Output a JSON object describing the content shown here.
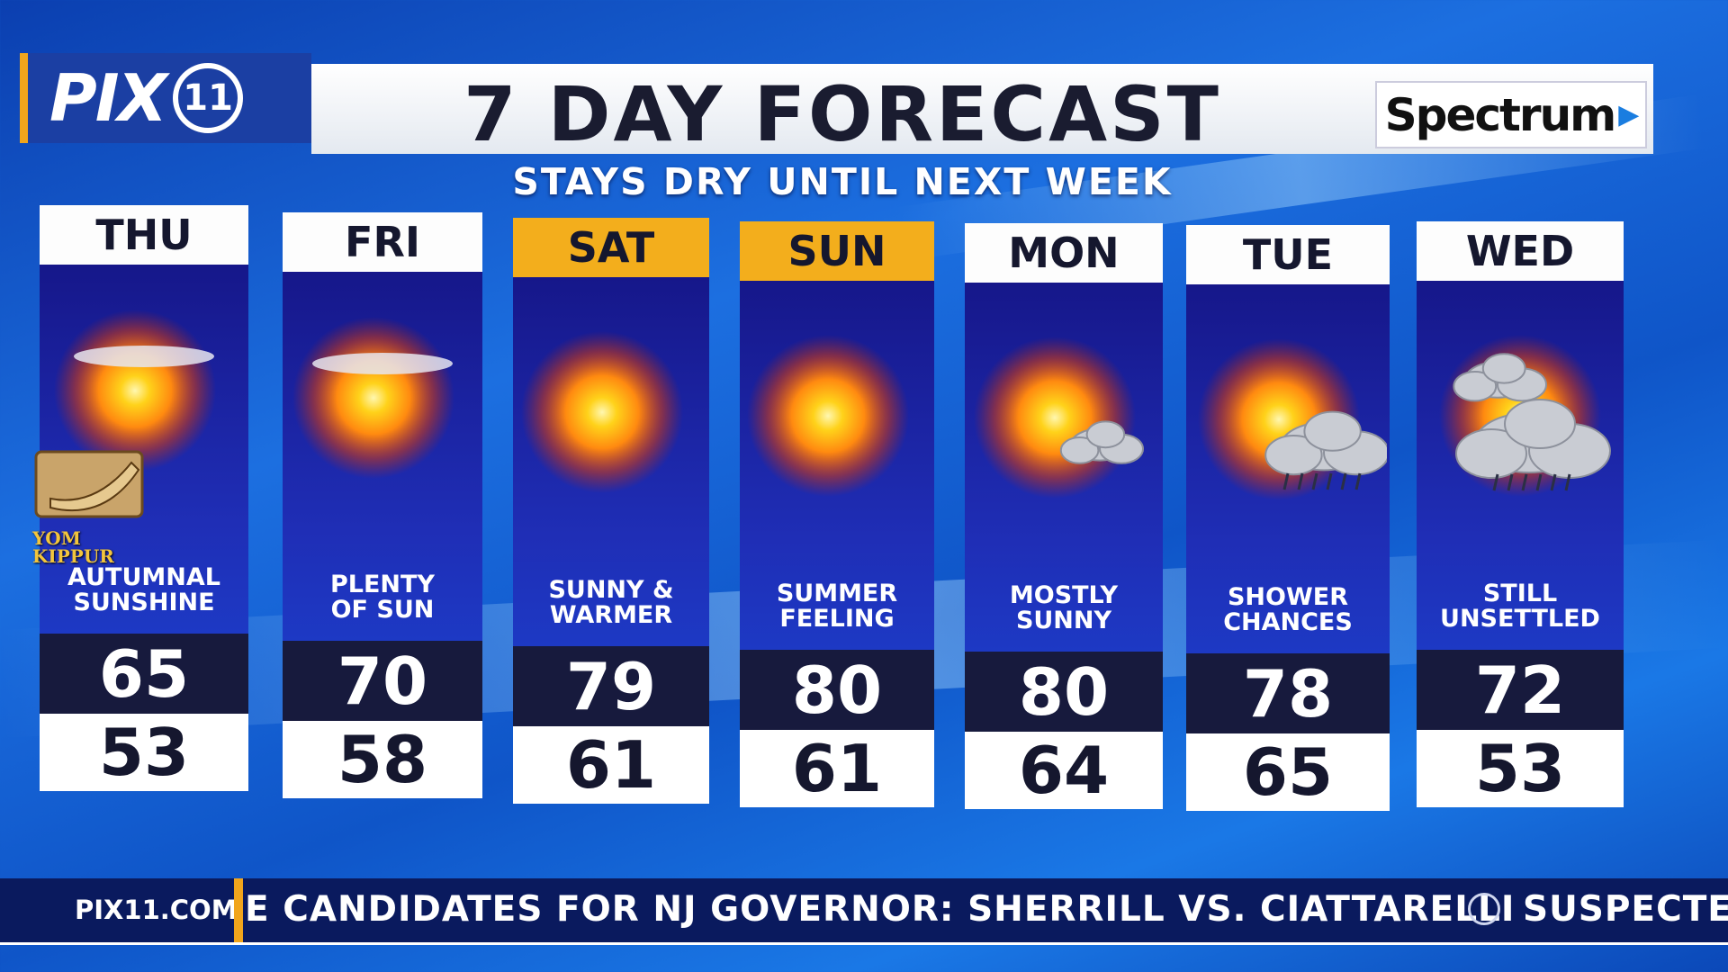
{
  "header": {
    "logo": "PIX",
    "logo_badge": "11",
    "title": "7 DAY FORECAST",
    "subtitle": "STAYS DRY UNTIL NEXT WEEK",
    "sponsor": "Spectrum"
  },
  "badge": {
    "label": "YOM KIPPUR"
  },
  "days": [
    {
      "day": "THU",
      "conditions": [
        "AUTUMNAL",
        "SUNSHINE"
      ],
      "high": 65,
      "low": 53,
      "highlighted": false
    },
    {
      "day": "FRI",
      "conditions": [
        "PLENTY",
        "OF SUN"
      ],
      "high": 70,
      "low": 58,
      "highlighted": false
    },
    {
      "day": "SAT",
      "conditions": [
        "SUNNY &",
        "WARMER"
      ],
      "high": 79,
      "low": 61,
      "highlighted": true
    },
    {
      "day": "SUN",
      "conditions": [
        "SUMMER",
        "FEELING"
      ],
      "high": 80,
      "low": 61,
      "highlighted": true
    },
    {
      "day": "MON",
      "conditions": [
        "MOSTLY",
        "SUNNY"
      ],
      "high": 80,
      "low": 64,
      "highlighted": false
    },
    {
      "day": "TUE",
      "conditions": [
        "SHOWER",
        "CHANCES"
      ],
      "high": 78,
      "low": 65,
      "highlighted": false
    },
    {
      "day": "WED",
      "conditions": [
        "STILL",
        "UNSETTLED"
      ],
      "high": 72,
      "low": 53,
      "highlighted": false
    }
  ],
  "ticker": {
    "site": "PIX11.COM",
    "headline": "E CANDIDATES FOR NJ GOVERNOR: SHERRILL VS. CIATTARELLI",
    "next": "SUSPECTE"
  }
}
